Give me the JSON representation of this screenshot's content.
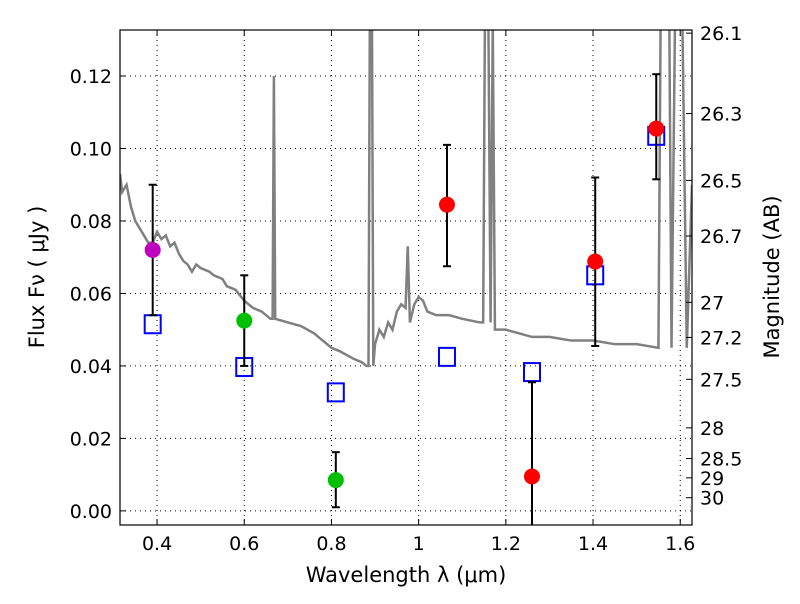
{
  "chart_data": {
    "type": "scatter",
    "xlabel": "Wavelength  λ (μm)",
    "ylabel": "Flux  Fν  ( μJy )",
    "ylabel_right": "Magnitude (AB)",
    "xlim": [
      0.315,
      1.627
    ],
    "ylim": [
      -0.0039,
      0.1327
    ],
    "grid": true,
    "x_ticks": [
      {
        "v": 0.4,
        "label": "0.4"
      },
      {
        "v": 0.6,
        "label": "0.6"
      },
      {
        "v": 0.8,
        "label": "0.8"
      },
      {
        "v": 1.0,
        "label": "1"
      },
      {
        "v": 1.2,
        "label": "1.2"
      },
      {
        "v": 1.4,
        "label": "1.4"
      },
      {
        "v": 1.6,
        "label": "1.6"
      }
    ],
    "y_ticks": [
      {
        "v": 0.0,
        "label": "0.00"
      },
      {
        "v": 0.02,
        "label": "0.02"
      },
      {
        "v": 0.04,
        "label": "0.04"
      },
      {
        "v": 0.06,
        "label": "0.06"
      },
      {
        "v": 0.08,
        "label": "0.08"
      },
      {
        "v": 0.1,
        "label": "0.10"
      },
      {
        "v": 0.12,
        "label": "0.12"
      }
    ],
    "right_ticks": [
      {
        "mag": 26.1,
        "label": "26.1"
      },
      {
        "mag": 26.3,
        "label": "26.3"
      },
      {
        "mag": 26.5,
        "label": "26.5"
      },
      {
        "mag": 26.7,
        "label": "26.7"
      },
      {
        "mag": 27,
        "label": "27"
      },
      {
        "mag": 27.2,
        "label": "27.2"
      },
      {
        "mag": 27.5,
        "label": "27.5"
      },
      {
        "mag": 28,
        "label": "28"
      },
      {
        "mag": 28.5,
        "label": "28.5"
      },
      {
        "mag": 29,
        "label": "29"
      },
      {
        "mag": 30,
        "label": "30"
      }
    ],
    "colors": {
      "spectrum": "#808080",
      "model": "#0000ff",
      "purple": "#bf00bf",
      "green": "#00bf00",
      "red": "#ff0000"
    },
    "observed": [
      {
        "x": 0.39,
        "y": 0.072,
        "lo": 0.054,
        "hi": 0.09,
        "color": "purple"
      },
      {
        "x": 0.6,
        "y": 0.0525,
        "lo": 0.04,
        "hi": 0.065,
        "color": "green"
      },
      {
        "x": 0.81,
        "y": 0.0085,
        "lo": 0.001,
        "hi": 0.0162,
        "color": "green"
      },
      {
        "x": 1.065,
        "y": 0.0845,
        "lo": 0.0675,
        "hi": 0.101,
        "color": "red"
      },
      {
        "x": 1.26,
        "y": 0.0095,
        "lo": -0.0045,
        "hi": 0.0355,
        "color": "red"
      },
      {
        "x": 1.405,
        "y": 0.0688,
        "lo": 0.0455,
        "hi": 0.092,
        "color": "red"
      },
      {
        "x": 1.545,
        "y": 0.1055,
        "lo": 0.0915,
        "hi": 0.1205,
        "color": "red"
      }
    ],
    "model_points": [
      {
        "x": 0.39,
        "y": 0.0515
      },
      {
        "x": 0.6,
        "y": 0.0397
      },
      {
        "x": 0.81,
        "y": 0.0327
      },
      {
        "x": 1.065,
        "y": 0.0425
      },
      {
        "x": 1.26,
        "y": 0.0383
      },
      {
        "x": 1.405,
        "y": 0.065
      },
      {
        "x": 1.545,
        "y": 0.1035
      }
    ],
    "spectrum": [
      [
        0.315,
        0.093
      ],
      [
        0.32,
        0.088
      ],
      [
        0.33,
        0.09
      ],
      [
        0.34,
        0.084
      ],
      [
        0.35,
        0.08
      ],
      [
        0.36,
        0.078
      ],
      [
        0.37,
        0.076
      ],
      [
        0.38,
        0.074
      ],
      [
        0.39,
        0.074
      ],
      [
        0.4,
        0.077
      ],
      [
        0.41,
        0.075
      ],
      [
        0.42,
        0.076
      ],
      [
        0.43,
        0.073
      ],
      [
        0.44,
        0.074
      ],
      [
        0.45,
        0.071
      ],
      [
        0.46,
        0.069
      ],
      [
        0.47,
        0.068
      ],
      [
        0.48,
        0.066
      ],
      [
        0.49,
        0.068
      ],
      [
        0.5,
        0.067
      ],
      [
        0.52,
        0.066
      ],
      [
        0.53,
        0.065
      ],
      [
        0.55,
        0.064
      ],
      [
        0.56,
        0.062
      ],
      [
        0.58,
        0.061
      ],
      [
        0.6,
        0.058
      ],
      [
        0.62,
        0.056
      ],
      [
        0.64,
        0.055
      ],
      [
        0.66,
        0.053
      ],
      [
        0.665,
        0.053
      ],
      [
        0.668,
        0.12
      ],
      [
        0.671,
        0.053
      ],
      [
        0.7,
        0.052
      ],
      [
        0.73,
        0.051
      ],
      [
        0.76,
        0.049
      ],
      [
        0.78,
        0.047
      ],
      [
        0.8,
        0.045
      ],
      [
        0.82,
        0.044
      ],
      [
        0.85,
        0.042
      ],
      [
        0.87,
        0.041
      ],
      [
        0.88,
        0.04
      ],
      [
        0.885,
        0.04
      ],
      [
        0.888,
        0.135
      ],
      [
        0.893,
        0.135
      ],
      [
        0.896,
        0.04
      ],
      [
        0.9,
        0.046
      ],
      [
        0.91,
        0.05
      ],
      [
        0.92,
        0.048
      ],
      [
        0.93,
        0.052
      ],
      [
        0.94,
        0.05
      ],
      [
        0.95,
        0.055
      ],
      [
        0.96,
        0.057
      ],
      [
        0.97,
        0.056
      ],
      [
        0.975,
        0.073
      ],
      [
        0.98,
        0.052
      ],
      [
        0.99,
        0.057
      ],
      [
        1.0,
        0.059
      ],
      [
        1.01,
        0.058
      ],
      [
        1.02,
        0.055
      ],
      [
        1.04,
        0.054
      ],
      [
        1.07,
        0.054
      ],
      [
        1.1,
        0.053
      ],
      [
        1.14,
        0.052
      ],
      [
        1.148,
        0.052
      ],
      [
        1.152,
        0.135
      ],
      [
        1.16,
        0.135
      ],
      [
        1.165,
        0.052
      ],
      [
        1.17,
        0.135
      ],
      [
        1.175,
        0.05
      ],
      [
        1.2,
        0.05
      ],
      [
        1.23,
        0.049
      ],
      [
        1.26,
        0.048
      ],
      [
        1.3,
        0.048
      ],
      [
        1.35,
        0.047
      ],
      [
        1.4,
        0.047
      ],
      [
        1.45,
        0.046
      ],
      [
        1.5,
        0.046
      ],
      [
        1.55,
        0.045
      ],
      [
        1.555,
        0.135
      ],
      [
        1.575,
        0.135
      ],
      [
        1.58,
        0.045
      ],
      [
        1.588,
        0.135
      ],
      [
        1.6,
        0.135
      ],
      [
        1.605,
        0.135
      ],
      [
        1.615,
        0.045
      ],
      [
        1.627,
        0.09
      ]
    ]
  }
}
